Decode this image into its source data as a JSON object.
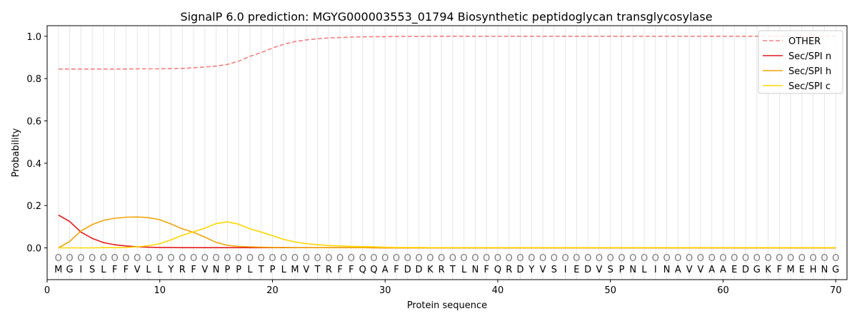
{
  "chart_data": {
    "type": "line",
    "title": "SignalP 6.0 prediction: MGYG000003553_01794 Biosynthetic peptidoglycan transglycosylase",
    "xlabel": "Protein sequence",
    "ylabel": "Probability",
    "xlim": [
      0,
      71
    ],
    "ylim": [
      -0.15,
      1.05
    ],
    "xticks": [
      0,
      10,
      20,
      30,
      40,
      50,
      60,
      70
    ],
    "yticks": [
      0.0,
      0.2,
      0.4,
      0.6,
      0.8,
      1.0
    ],
    "ytick_labels": [
      "0.0",
      "0.2",
      "0.4",
      "0.6",
      "0.8",
      "1.0"
    ],
    "legend_position": "top-right",
    "sequence": [
      "M",
      "G",
      "I",
      "S",
      "L",
      "F",
      "F",
      "V",
      "L",
      "L",
      "Y",
      "R",
      "F",
      "V",
      "N",
      "P",
      "P",
      "L",
      "T",
      "P",
      "L",
      "M",
      "V",
      "T",
      "R",
      "F",
      "F",
      "Q",
      "Q",
      "A",
      "F",
      "D",
      "D",
      "K",
      "R",
      "T",
      "L",
      "N",
      "F",
      "Q",
      "R",
      "D",
      "Y",
      "V",
      "S",
      "I",
      "E",
      "D",
      "V",
      "S",
      "P",
      "N",
      "L",
      "I",
      "N",
      "A",
      "V",
      "V",
      "A",
      "A",
      "E",
      "D",
      "G",
      "K",
      "F",
      "M",
      "E",
      "H",
      "N",
      "G"
    ],
    "region_marker": "O",
    "x": [
      1,
      2,
      3,
      4,
      5,
      6,
      7,
      8,
      9,
      10,
      11,
      12,
      13,
      14,
      15,
      16,
      17,
      18,
      19,
      20,
      21,
      22,
      23,
      24,
      25,
      26,
      27,
      28,
      29,
      30,
      31,
      32,
      33,
      34,
      35,
      36,
      37,
      38,
      39,
      40,
      41,
      42,
      43,
      44,
      45,
      46,
      47,
      48,
      49,
      50,
      51,
      52,
      53,
      54,
      55,
      56,
      57,
      58,
      59,
      60,
      61,
      62,
      63,
      64,
      65,
      66,
      67,
      68,
      69,
      70
    ],
    "series": [
      {
        "name": "OTHER",
        "color": "#f08080",
        "dash": true,
        "values": [
          0.845,
          0.845,
          0.845,
          0.845,
          0.845,
          0.845,
          0.845,
          0.846,
          0.846,
          0.846,
          0.847,
          0.848,
          0.851,
          0.855,
          0.859,
          0.867,
          0.882,
          0.905,
          0.923,
          0.944,
          0.962,
          0.975,
          0.983,
          0.988,
          0.992,
          0.994,
          0.996,
          0.997,
          0.998,
          0.998,
          0.999,
          0.999,
          0.999,
          1.0,
          1.0,
          1.0,
          1.0,
          1.0,
          1.0,
          1.0,
          1.0,
          1.0,
          1.0,
          1.0,
          1.0,
          1.0,
          1.0,
          1.0,
          1.0,
          1.0,
          1.0,
          1.0,
          1.0,
          1.0,
          1.0,
          1.0,
          1.0,
          1.0,
          1.0,
          1.0,
          1.0,
          1.0,
          1.0,
          1.0,
          1.0,
          1.0,
          1.0,
          1.0,
          1.0,
          1.0
        ]
      },
      {
        "name": "Sec/SPI n",
        "color": "#e41a1c",
        "dash": false,
        "values": [
          0.155,
          0.125,
          0.075,
          0.045,
          0.025,
          0.015,
          0.009,
          0.005,
          0.003,
          0.002,
          0.002,
          0.001,
          0.001,
          0.001,
          0.001,
          0.001,
          0.001,
          0.001,
          0.001,
          0.001,
          0.001,
          0.001,
          0.001,
          0.001,
          0.001,
          0.001,
          0.001,
          0.001,
          0.001,
          0.0,
          0.0,
          0.0,
          0.0,
          0.0,
          0.0,
          0.0,
          0.0,
          0.0,
          0.0,
          0.0,
          0.0,
          0.0,
          0.0,
          0.0,
          0.0,
          0.0,
          0.0,
          0.0,
          0.0,
          0.0,
          0.0,
          0.0,
          0.0,
          0.0,
          0.0,
          0.0,
          0.0,
          0.0,
          0.0,
          0.0,
          0.0,
          0.0,
          0.0,
          0.0,
          0.0,
          0.0,
          0.0,
          0.0,
          0.0,
          0.0
        ]
      },
      {
        "name": "Sec/SPI h",
        "color": "#f0a30a",
        "dash": false,
        "values": [
          0.0,
          0.03,
          0.08,
          0.11,
          0.13,
          0.14,
          0.145,
          0.146,
          0.143,
          0.133,
          0.113,
          0.09,
          0.073,
          0.051,
          0.026,
          0.012,
          0.007,
          0.005,
          0.003,
          0.002,
          0.002,
          0.001,
          0.001,
          0.001,
          0.001,
          0.001,
          0.001,
          0.001,
          0.0,
          0.0,
          0.0,
          0.0,
          0.0,
          0.0,
          0.0,
          0.0,
          0.0,
          0.0,
          0.0,
          0.0,
          0.0,
          0.0,
          0.0,
          0.0,
          0.0,
          0.0,
          0.0,
          0.0,
          0.0,
          0.0,
          0.0,
          0.0,
          0.0,
          0.0,
          0.0,
          0.0,
          0.0,
          0.0,
          0.0,
          0.0,
          0.0,
          0.0,
          0.0,
          0.0,
          0.0,
          0.0,
          0.0,
          0.0,
          0.0,
          0.0
        ]
      },
      {
        "name": "Sec/SPI c",
        "color": "#ffd700",
        "dash": false,
        "values": [
          0.0,
          0.0,
          0.0,
          0.0,
          0.001,
          0.001,
          0.002,
          0.005,
          0.01,
          0.02,
          0.038,
          0.06,
          0.076,
          0.093,
          0.115,
          0.123,
          0.112,
          0.09,
          0.075,
          0.058,
          0.04,
          0.028,
          0.02,
          0.015,
          0.011,
          0.009,
          0.007,
          0.006,
          0.005,
          0.003,
          0.002,
          0.002,
          0.002,
          0.001,
          0.001,
          0.001,
          0.001,
          0.001,
          0.001,
          0.001,
          0.001,
          0.001,
          0.001,
          0.001,
          0.001,
          0.001,
          0.001,
          0.001,
          0.001,
          0.001,
          0.001,
          0.001,
          0.001,
          0.001,
          0.001,
          0.001,
          0.001,
          0.001,
          0.001,
          0.001,
          0.001,
          0.001,
          0.001,
          0.001,
          0.001,
          0.001,
          0.001,
          0.001,
          0.001,
          0.001
        ]
      }
    ]
  }
}
